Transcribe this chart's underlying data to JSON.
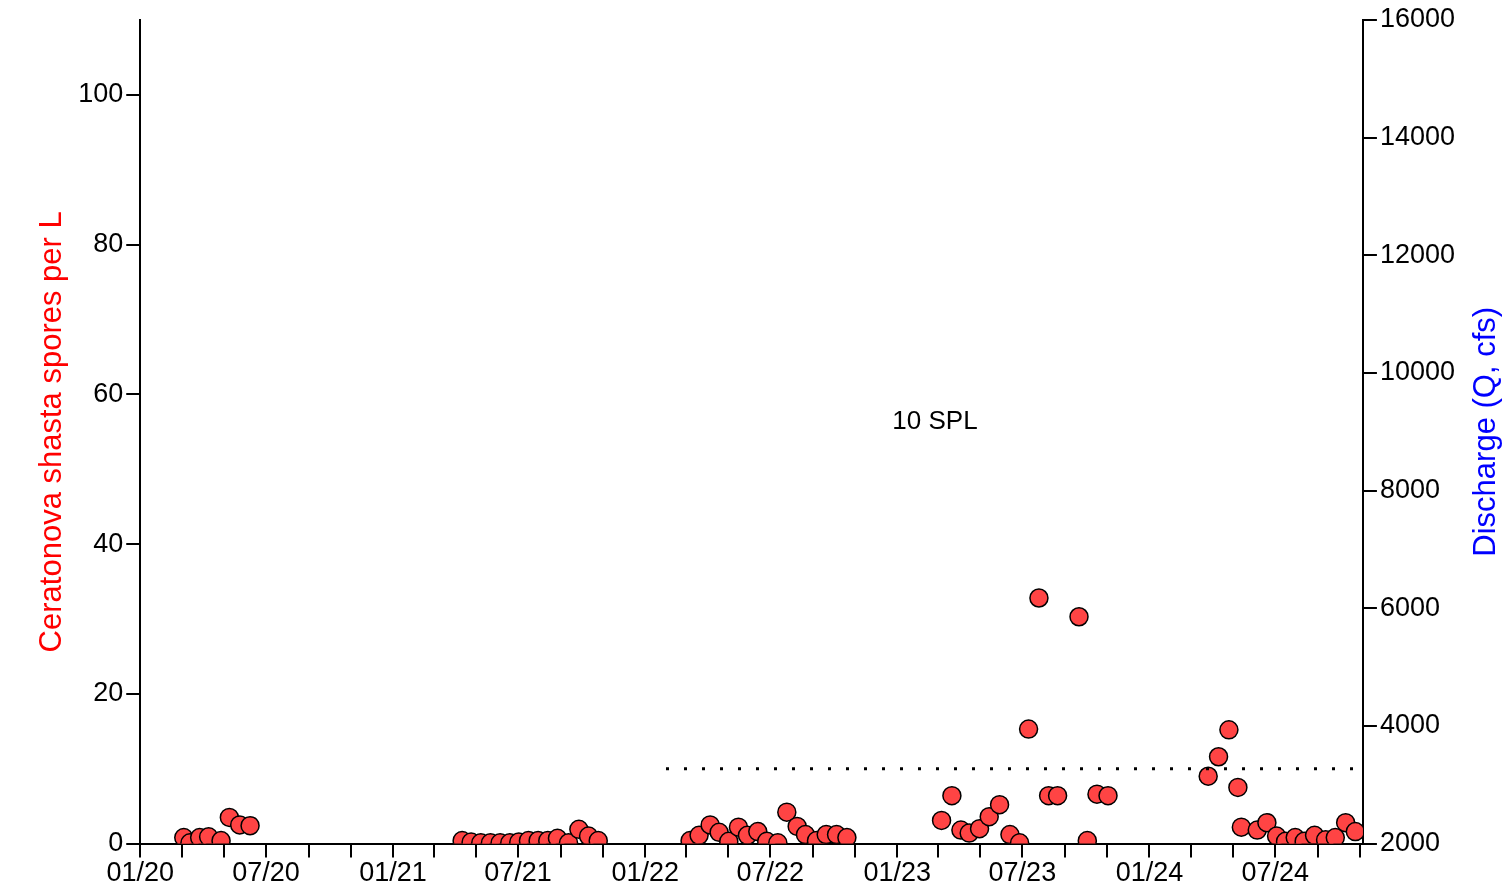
{
  "chart_data": {
    "type": "scatter",
    "ylabel": "Ceratonova shasta spores per L",
    "y2label": "Discharge (Q, cfs)",
    "series": [
      {
        "color": "#ff4444",
        "x": [
          "2020-03-04",
          "2020-03-13",
          "2020-03-27",
          "2020-04-09",
          "2020-04-27",
          "2020-05-09",
          "2020-05-24",
          "2020-06-08",
          "2021-04-11",
          "2021-04-24",
          "2021-05-08",
          "2021-05-22",
          "2021-06-05",
          "2021-06-19",
          "2021-07-02",
          "2021-07-16",
          "2021-07-30",
          "2021-08-13",
          "2021-08-27",
          "2021-09-12",
          "2021-09-27",
          "2021-10-11",
          "2021-10-25",
          "2022-03-07",
          "2022-03-20",
          "2022-04-05",
          "2022-04-18",
          "2022-05-02",
          "2022-05-16",
          "2022-05-29",
          "2022-06-13",
          "2022-06-26",
          "2022-07-12",
          "2022-07-25",
          "2022-08-09",
          "2022-08-21",
          "2022-09-06",
          "2022-09-20",
          "2022-10-05",
          "2022-10-20",
          "2023-03-06",
          "2023-03-21",
          "2023-04-03",
          "2023-04-15",
          "2023-04-30",
          "2023-05-14",
          "2023-05-29",
          "2023-06-13",
          "2023-06-27",
          "2023-07-10",
          "2023-07-25",
          "2023-08-08",
          "2023-08-21",
          "2023-09-21",
          "2023-10-03",
          "2023-10-17",
          "2023-11-02",
          "2024-03-26",
          "2024-04-10",
          "2024-04-25",
          "2024-05-08",
          "2024-05-13",
          "2024-06-05",
          "2024-06-19",
          "2024-07-03",
          "2024-07-16",
          "2024-07-30",
          "2024-08-12",
          "2024-08-27",
          "2024-09-12",
          "2024-09-26",
          "2024-10-11",
          "2024-10-25"
        ],
        "values": [
          0.8,
          0.1,
          0.8,
          0.9,
          0.4,
          3.5,
          2.5,
          2.4,
          0.4,
          0.2,
          0.1,
          0.1,
          0.1,
          0.1,
          0.2,
          0.4,
          0.4,
          0.4,
          0.7,
          0.1,
          1.9,
          1.0,
          0.4,
          0.4,
          1.1,
          2.5,
          1.5,
          0.3,
          2.2,
          1.1,
          1.6,
          0.3,
          0.1,
          4.2,
          2.3,
          1.2,
          0.4,
          1.2,
          1.2,
          0.8,
          3.1,
          6.4,
          1.8,
          1.4,
          2.0,
          3.6,
          5.2,
          1.2,
          0.1,
          15.3,
          32.8,
          6.4,
          6.4,
          30.3,
          0.4,
          6.6,
          6.4,
          9.0,
          11.6,
          15.2,
          7.5,
          2.2,
          1.8,
          2.8,
          1.0,
          0.3,
          0.8,
          0.3,
          1.1,
          0.5,
          0.8,
          2.8,
          1.6
        ]
      }
    ],
    "marker": "circle",
    "xlim": [
      "2020-01-01",
      "2024-11-05"
    ],
    "xticks": [
      {
        "value": "2020-01-01",
        "label": "01/20"
      },
      {
        "value": "2020-03-01",
        "label": null
      },
      {
        "value": "2020-05-01",
        "label": null
      },
      {
        "value": "2020-07-01",
        "label": "07/20"
      },
      {
        "value": "2020-09-01",
        "label": null
      },
      {
        "value": "2020-11-01",
        "label": null
      },
      {
        "value": "2021-01-01",
        "label": "01/21"
      },
      {
        "value": "2021-03-01",
        "label": null
      },
      {
        "value": "2021-05-01",
        "label": null
      },
      {
        "value": "2021-07-01",
        "label": "07/21"
      },
      {
        "value": "2021-09-01",
        "label": null
      },
      {
        "value": "2021-11-01",
        "label": null
      },
      {
        "value": "2022-01-01",
        "label": "01/22"
      },
      {
        "value": "2022-03-01",
        "label": null
      },
      {
        "value": "2022-05-01",
        "label": null
      },
      {
        "value": "2022-07-01",
        "label": "07/22"
      },
      {
        "value": "2022-09-01",
        "label": null
      },
      {
        "value": "2022-11-01",
        "label": null
      },
      {
        "value": "2023-01-01",
        "label": "01/23"
      },
      {
        "value": "2023-03-01",
        "label": null
      },
      {
        "value": "2023-05-01",
        "label": null
      },
      {
        "value": "2023-07-01",
        "label": "07/23"
      },
      {
        "value": "2023-09-01",
        "label": null
      },
      {
        "value": "2023-11-01",
        "label": null
      },
      {
        "value": "2024-01-01",
        "label": "01/24"
      },
      {
        "value": "2024-03-01",
        "label": null
      },
      {
        "value": "2024-05-01",
        "label": null
      },
      {
        "value": "2024-07-01",
        "label": "07/24"
      },
      {
        "value": "2024-09-01",
        "label": null
      },
      {
        "value": "2024-11-01",
        "label": null
      }
    ],
    "ylim": [
      0,
      110
    ],
    "yticks": [
      0,
      20,
      40,
      60,
      80,
      100
    ],
    "y2lim": [
      2000,
      16000
    ],
    "y2ticks": [
      2000,
      4000,
      6000,
      8000,
      10000,
      12000,
      14000,
      16000
    ],
    "ref_lines": [
      {
        "axis": "y",
        "value": 10,
        "label": "10 SPL",
        "color": "#000000",
        "line_style": "dotted"
      }
    ],
    "grid": false,
    "legend": false
  }
}
